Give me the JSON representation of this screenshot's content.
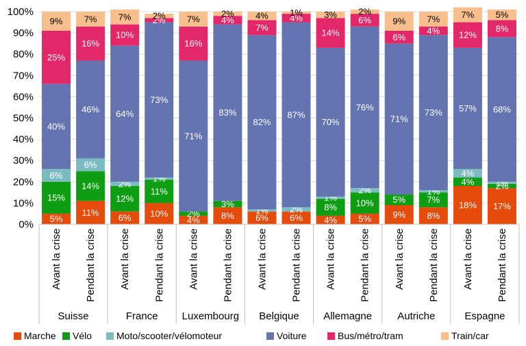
{
  "chart_data": {
    "type": "bar",
    "stacked": true,
    "percent": true,
    "ylim": [
      0,
      100
    ],
    "yticks": [
      0,
      10,
      20,
      30,
      40,
      50,
      60,
      70,
      80,
      90,
      100
    ],
    "tick_suffix": "%",
    "grid": true,
    "legend_position": "bottom",
    "groups": [
      "Suisse",
      "France",
      "Luxembourg",
      "Belgique",
      "Allemagne",
      "Autriche",
      "Espagne"
    ],
    "categories": [
      "Avant la crise",
      "Pendant la crise",
      "Avant la crise",
      "Pendant la crise",
      "Avant la crise",
      "Pendant la crise",
      "Avant la crise",
      "Pendant la crise",
      "Avant la crise",
      "Pendant la crise",
      "Avant la crise",
      "Pendant la crise",
      "Avant la crise",
      "Pendant la crise"
    ],
    "series": [
      {
        "name": "Marche",
        "color": "#e54b0b",
        "values": [
          5,
          11,
          6,
          10,
          4,
          8,
          6,
          6,
          4,
          5,
          9,
          8,
          18,
          17
        ],
        "labels": [
          "5%",
          "11%",
          "6%",
          "10%",
          "4%",
          "8%",
          "6%",
          "6%",
          "4%",
          "5%",
          "9%",
          "8%",
          "18%",
          "17%"
        ]
      },
      {
        "name": "Vélo",
        "color": "#0f9d14",
        "values": [
          15,
          14,
          12,
          11,
          2,
          3,
          0,
          0,
          8,
          10,
          5,
          7,
          4,
          2
        ],
        "labels": [
          "15%",
          "14%",
          "12%",
          "11%",
          "2%",
          "3%",
          "",
          "",
          "8%",
          "10%",
          "5%",
          "7%",
          "4%",
          "2%"
        ]
      },
      {
        "name": "Moto/scooter/vélomoteur",
        "color": "#7bbcc2",
        "values": [
          6,
          6,
          2,
          1,
          0,
          0,
          1,
          2,
          1,
          2,
          0,
          1,
          4,
          1
        ],
        "labels": [
          "6%",
          "6%",
          "2%",
          "1%",
          "",
          "",
          "1%",
          "2%",
          "1%",
          "2%",
          "",
          "1%",
          "4%",
          "1%"
        ]
      },
      {
        "name": "Voiture",
        "color": "#6474b0",
        "values": [
          40,
          46,
          64,
          73,
          71,
          83,
          82,
          87,
          70,
          76,
          71,
          73,
          57,
          68
        ],
        "labels": [
          "40%",
          "46%",
          "64%",
          "73%",
          "71%",
          "83%",
          "82%",
          "87%",
          "70%",
          "76%",
          "71%",
          "73%",
          "57%",
          "68%"
        ]
      },
      {
        "name": "Bus/métro/tram",
        "color": "#e3286a",
        "values": [
          25,
          16,
          10,
          2,
          16,
          4,
          7,
          4,
          14,
          6,
          6,
          4,
          12,
          8
        ],
        "labels": [
          "25%",
          "16%",
          "10%",
          "2%",
          "16%",
          "4%",
          "7%",
          "4%",
          "14%",
          "6%",
          "6%",
          "4%",
          "12%",
          "8%"
        ]
      },
      {
        "name": "Train/car",
        "color": "#f8be8c",
        "values": [
          9,
          7,
          7,
          2,
          7,
          2,
          4,
          1,
          3,
          2,
          9,
          7,
          7,
          5
        ],
        "labels": [
          "9%",
          "7%",
          "7%",
          "2%",
          "7%",
          "2%",
          "4%",
          "1%",
          "3%",
          "2%",
          "9%",
          "7%",
          "7%",
          "5%"
        ]
      }
    ],
    "title": "",
    "xlabel": "",
    "ylabel": ""
  }
}
